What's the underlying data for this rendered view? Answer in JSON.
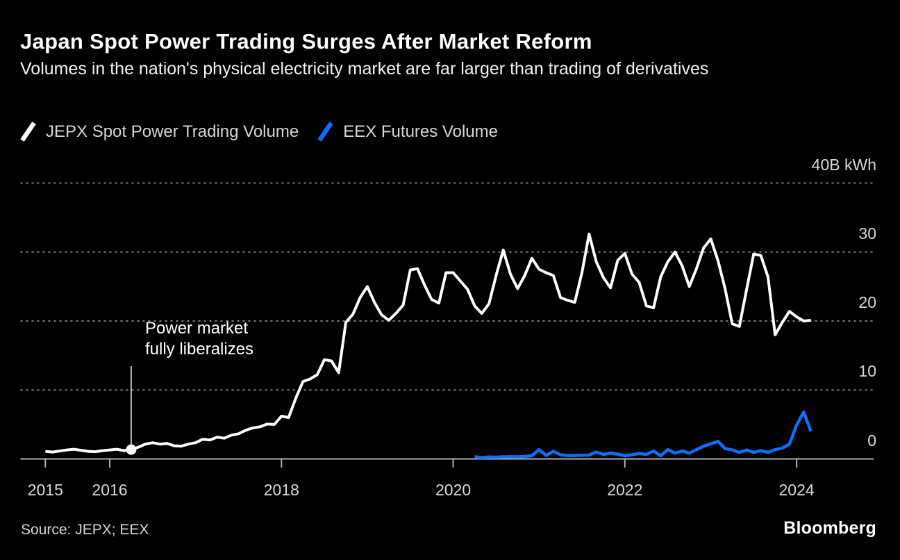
{
  "header": {
    "title": "Japan Spot Power Trading Surges After Market Reform",
    "subtitle": "Volumes in the nation's physical electricity market are far larger than trading of derivatives"
  },
  "legend": {
    "items": [
      {
        "label": "JEPX Spot Power Trading Volume",
        "color": "#ffffff"
      },
      {
        "label": "EEX Futures Volume",
        "color": "#0d6ef8"
      }
    ]
  },
  "annotation": {
    "lines": [
      "Power market",
      "fully liberalizes"
    ],
    "month_index": 12,
    "value": 1.35
  },
  "footer": {
    "source": "Source: JEPX; EEX",
    "logo": "Bloomberg"
  },
  "colors": {
    "background": "#000000",
    "jepx_line": "#ffffff",
    "eex_line": "#0d6ef8",
    "grid": "#808080",
    "axis": "#b0b0b0",
    "tick_label": "#d9d9d9"
  },
  "chart_data": {
    "type": "line",
    "title": "Japan Spot Power Trading Surges After Market Reform",
    "xlabel": "",
    "ylabel": "B kWh",
    "x_start": "2015-04",
    "frequency": "monthly",
    "ylim": [
      0,
      42
    ],
    "grid": "dotted-horizontal",
    "legend_position": "top-left",
    "y_tick_values": [
      0,
      10,
      20,
      30,
      40
    ],
    "y_tick_labels": [
      "0",
      "10",
      "20",
      "30",
      "40B kWh"
    ],
    "x_tick_labels": [
      "2015",
      "2016",
      "2018",
      "2020",
      "2022",
      "2024"
    ],
    "x_tick_month_index": [
      0,
      9,
      33,
      57,
      81,
      105
    ],
    "series": [
      {
        "name": "JEPX Spot Power Trading Volume",
        "color": "#ffffff",
        "start_month_index": 0,
        "values": [
          1.1,
          1.0,
          1.15,
          1.3,
          1.4,
          1.25,
          1.1,
          1.05,
          1.2,
          1.3,
          1.4,
          1.2,
          1.35,
          1.7,
          2.15,
          2.35,
          2.15,
          2.25,
          1.9,
          1.85,
          2.15,
          2.35,
          2.85,
          2.75,
          3.15,
          3.0,
          3.45,
          3.65,
          4.15,
          4.5,
          4.65,
          5.05,
          5.0,
          6.2,
          6.0,
          8.8,
          11.2,
          11.6,
          12.2,
          14.4,
          14.2,
          12.5,
          19.8,
          21.0,
          23.4,
          25.0,
          22.7,
          20.9,
          20.1,
          21.1,
          22.3,
          27.4,
          27.6,
          25.2,
          23.1,
          22.6,
          27.0,
          27.0,
          25.8,
          24.6,
          22.2,
          21.1,
          22.5,
          26.6,
          30.3,
          26.8,
          24.7,
          26.6,
          29.1,
          27.5,
          27.0,
          26.6,
          23.4,
          23.0,
          22.7,
          27.0,
          32.6,
          28.6,
          26.3,
          24.8,
          28.8,
          29.8,
          26.8,
          25.6,
          22.2,
          21.9,
          26.4,
          28.6,
          30.0,
          28.0,
          25.0,
          27.6,
          30.6,
          31.9,
          28.8,
          24.7,
          19.6,
          19.2,
          24.5,
          29.7,
          29.5,
          26.4,
          18.0,
          19.8,
          21.4,
          20.6,
          20.0,
          20.1
        ]
      },
      {
        "name": "EEX Futures Volume",
        "color": "#0d6ef8",
        "start_month_index": 60,
        "values": [
          0.3,
          0.2,
          0.28,
          0.25,
          0.3,
          0.33,
          0.3,
          0.35,
          0.45,
          1.35,
          0.5,
          1.1,
          0.6,
          0.48,
          0.5,
          0.52,
          0.55,
          1.0,
          0.65,
          0.85,
          0.7,
          0.45,
          0.6,
          0.8,
          0.65,
          1.15,
          0.45,
          1.35,
          0.85,
          1.15,
          0.85,
          1.35,
          1.85,
          2.2,
          2.55,
          1.5,
          1.3,
          0.95,
          1.3,
          0.95,
          1.2,
          0.95,
          1.35,
          1.55,
          2.15,
          4.9,
          6.8,
          4.0
        ]
      }
    ],
    "annotations": [
      {
        "label": "Power market fully liberalizes",
        "month_index": 12,
        "value": 1.35,
        "date": "2016-04"
      }
    ]
  }
}
